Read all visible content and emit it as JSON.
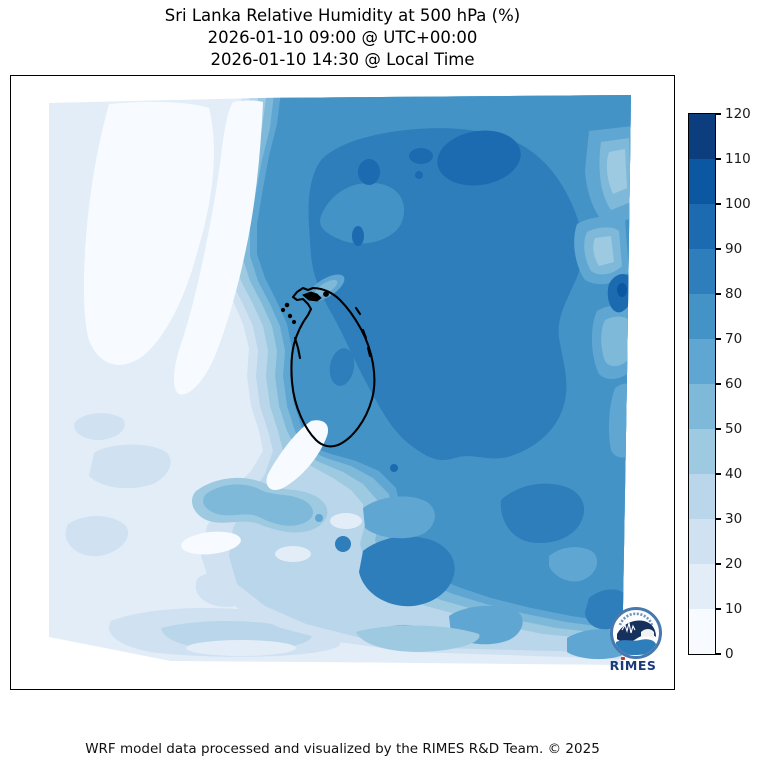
{
  "title": {
    "line1": "Sri Lanka Relative Humidity at 500 hPa (%)",
    "line2": "2026-01-10 09:00 @ UTC+00:00",
    "line3": "2026-01-10 14:30 @ Local Time"
  },
  "footer": "WRF model data processed and visualized by the RIMES R&D Team. © 2025",
  "logo": {
    "text": "RIMES"
  },
  "chart_data": {
    "type": "heatmap",
    "subtype": "filled-contour-map",
    "title": "Sri Lanka Relative Humidity at 500 hPa (%)",
    "valid_time_utc": "2026-01-10 09:00 @ UTC+00:00",
    "valid_time_local": "2026-01-10 14:30 @ Local Time",
    "units": "%",
    "colorbar_ticks": [
      0,
      10,
      20,
      30,
      40,
      50,
      60,
      70,
      80,
      90,
      100,
      110,
      120
    ],
    "level_bounds": [
      0,
      10,
      20,
      30,
      40,
      50,
      60,
      70,
      80,
      90,
      100,
      110,
      120
    ],
    "level_colors": [
      "#f7fbff",
      "#e2edf8",
      "#d0e1f2",
      "#b9d6ea",
      "#9ecae1",
      "#7fb9da",
      "#60a6d2",
      "#4493c7",
      "#2e7ebc",
      "#1c6ab0",
      "#0c57a2",
      "#0b3d7f"
    ],
    "colorbar_range": [
      0,
      120
    ],
    "legend_position": "right",
    "grid": false,
    "coastline_color": "#000000",
    "regional_values_percent": {
      "west_offshore": "0-20 (driest, pale tongues)",
      "central_sharp_front": "20-70 tight gradient running N-S just west of Sri Lanka",
      "north_and_east_of_island": "70-100 with 90-100 cores",
      "island_interior_north": "70-90",
      "island_southwest_and_south": "10-50 light tongue crossing coast",
      "south_central_ocean": "20-60 mottled with 50-60 snake",
      "southeast_quadrant": "60-80 mottled",
      "far_east_edge": "30-60 lighter strips with one 90-110 dark spot"
    }
  }
}
